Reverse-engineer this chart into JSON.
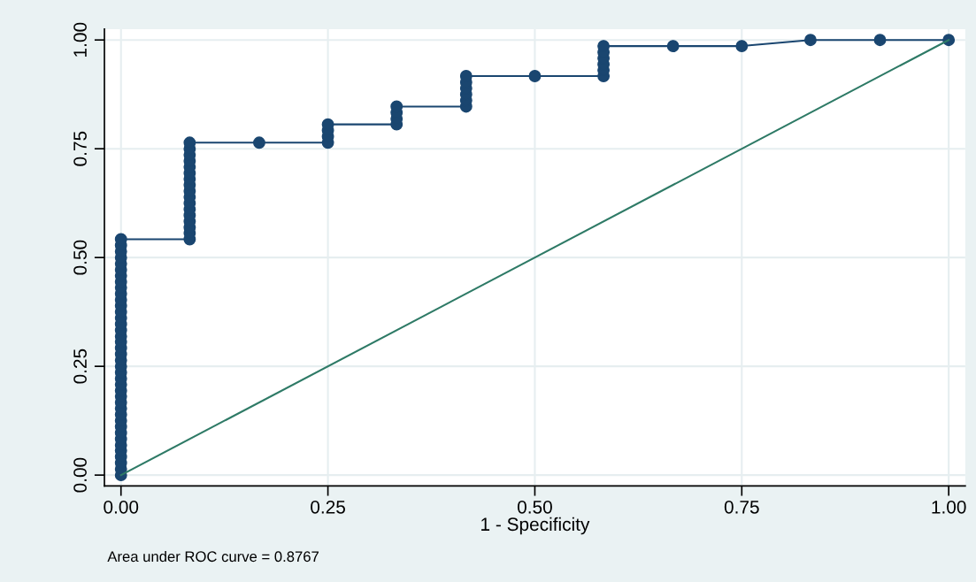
{
  "chart_data": {
    "type": "line",
    "xlabel": "1 - Specificity",
    "annotations": [
      "Area under ROC curve = 0.8767"
    ],
    "xlim": [
      -0.02,
      1.02
    ],
    "ylim": [
      -0.025,
      1.025
    ],
    "xticks": [
      {
        "value": 0,
        "label": "0.00"
      },
      {
        "value": 0.25,
        "label": "0.25"
      },
      {
        "value": 0.5,
        "label": "0.50"
      },
      {
        "value": 0.75,
        "label": "0.75"
      },
      {
        "value": 1,
        "label": "1.00"
      }
    ],
    "yticks": [
      {
        "value": 0,
        "label": "0.00"
      },
      {
        "value": 0.25,
        "label": "0.25"
      },
      {
        "value": 0.5,
        "label": "0.50"
      },
      {
        "value": 0.75,
        "label": "0.75"
      },
      {
        "value": 1,
        "label": "1.00"
      }
    ],
    "grid": true,
    "legend": false,
    "series": [
      {
        "color": "#1a4670",
        "marker": "circle",
        "line_style": "solid",
        "x": [
          0,
          0,
          0,
          0,
          0,
          0,
          0,
          0,
          0,
          0,
          0,
          0,
          0,
          0,
          0,
          0,
          0,
          0,
          0,
          0,
          0,
          0,
          0,
          0,
          0,
          0,
          0,
          0,
          0,
          0,
          0,
          0,
          0,
          0,
          0,
          0,
          0,
          0,
          0,
          0,
          0.083,
          0.083,
          0.083,
          0.083,
          0.083,
          0.083,
          0.083,
          0.083,
          0.083,
          0.083,
          0.083,
          0.083,
          0.083,
          0.083,
          0.083,
          0.083,
          0.083,
          0.167,
          0.25,
          0.25,
          0.25,
          0.25,
          0.333,
          0.333,
          0.333,
          0.333,
          0.417,
          0.417,
          0.417,
          0.417,
          0.417,
          0.417,
          0.5,
          0.583,
          0.583,
          0.583,
          0.583,
          0.583,
          0.583,
          0.667,
          0.75,
          0.833,
          0.917,
          1
        ],
        "values": [
          0,
          0.014,
          0.028,
          0.042,
          0.056,
          0.069,
          0.083,
          0.097,
          0.111,
          0.125,
          0.139,
          0.153,
          0.167,
          0.181,
          0.194,
          0.208,
          0.222,
          0.236,
          0.25,
          0.264,
          0.278,
          0.292,
          0.306,
          0.319,
          0.333,
          0.347,
          0.361,
          0.375,
          0.389,
          0.403,
          0.417,
          0.431,
          0.444,
          0.458,
          0.472,
          0.486,
          0.5,
          0.514,
          0.528,
          0.542,
          0.542,
          0.556,
          0.569,
          0.583,
          0.597,
          0.611,
          0.625,
          0.639,
          0.653,
          0.667,
          0.681,
          0.694,
          0.708,
          0.722,
          0.736,
          0.75,
          0.764,
          0.764,
          0.764,
          0.778,
          0.792,
          0.806,
          0.806,
          0.819,
          0.833,
          0.847,
          0.847,
          0.861,
          0.875,
          0.889,
          0.903,
          0.917,
          0.917,
          0.917,
          0.931,
          0.944,
          0.958,
          0.972,
          0.986,
          0.986,
          0.986,
          1,
          1,
          1
        ]
      },
      {
        "color": "#2e7a66",
        "marker": "none",
        "line_style": "solid",
        "x": [
          0,
          1
        ],
        "values": [
          0,
          1
        ]
      }
    ]
  }
}
